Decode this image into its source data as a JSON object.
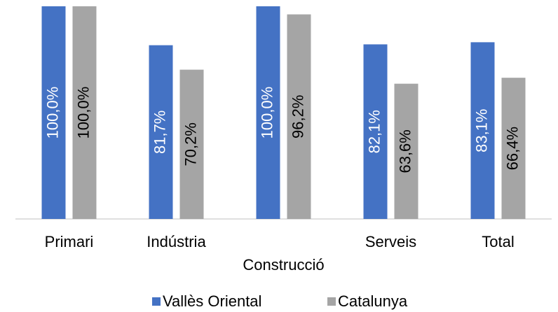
{
  "chart_data": {
    "type": "bar",
    "categories": [
      "Primari",
      "Indústria",
      "Construcció",
      "Serveis",
      "Total"
    ],
    "series": [
      {
        "name": "Vallès Oriental",
        "color": "#4472c4",
        "values": [
          100.0,
          81.7,
          100.0,
          82.1,
          83.1
        ],
        "value_labels": [
          "100,0%",
          "81,7%",
          "100,0%",
          "82,1%",
          "83,1%"
        ]
      },
      {
        "name": "Catalunya",
        "color": "#a5a5a5",
        "values": [
          100.0,
          70.2,
          96.2,
          63.6,
          66.4
        ],
        "value_labels": [
          "100,0%",
          "70,2%",
          "96,2%",
          "63,6%",
          "66,4%"
        ]
      }
    ],
    "ylim": [
      0,
      100
    ],
    "legend": "bottom"
  }
}
